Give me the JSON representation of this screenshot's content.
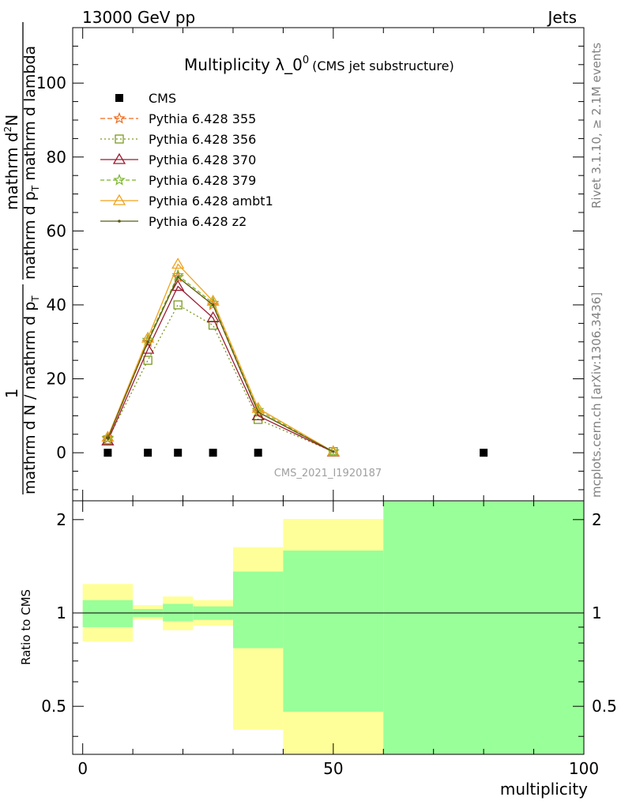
{
  "header": {
    "left": "13000 GeV pp",
    "right": "Jets"
  },
  "side": {
    "rivet": "Rivet 3.1.10, ≥ 2.1M events",
    "mcplots": "mcplots.cern.ch [arXiv:1306.3436]"
  },
  "chart_data": [
    {
      "type": "line",
      "title_main": "Multiplicity λ_0",
      "title_sup": "0",
      "title_small": "(CMS jet substructure)",
      "watermark": "CMS_2021_I1920187",
      "ylabel_num": "mathrm d",
      "ylabel_num_sup": "2",
      "ylabel_num_N": "N",
      "ylabel_den_line": "mathrm d p",
      "ylabel_den_sub": "T",
      "ylabel_den_rest": " mathrm d lambda",
      "ylabel_prefix_1": "1",
      "ylabel_prefix_den": "mathrm d N / mathrm d p",
      "ylabel_prefix_sub": "T",
      "ylim": [
        -13,
        115
      ],
      "xlim": [
        -2,
        100
      ],
      "y_ticks": [
        "0",
        "20",
        "40",
        "60",
        "80",
        "100"
      ],
      "legend_placement": "top-left",
      "data": {
        "name": "CMS",
        "x": [
          5,
          13,
          19,
          26,
          35,
          80
        ],
        "y": [
          0,
          0,
          0,
          0,
          0,
          0
        ]
      },
      "series": [
        {
          "name": "Pythia 6.428 355",
          "color": "#f06a1c",
          "marker": "star",
          "dash": "6,3",
          "x": [
            5,
            13,
            19,
            26,
            35,
            50
          ],
          "y": [
            3.8,
            30.0,
            47.5,
            40.0,
            11.0,
            0.3
          ]
        },
        {
          "name": "Pythia 6.428 356",
          "color": "#7a9a1e",
          "marker": "square",
          "dash": "2,3",
          "x": [
            5,
            13,
            19,
            26,
            35,
            50
          ],
          "y": [
            3.5,
            25.0,
            40.0,
            34.5,
            9.0,
            0.3
          ]
        },
        {
          "name": "Pythia 6.428 370",
          "color": "#9b1b30",
          "marker": "triangle",
          "dash": "",
          "x": [
            5,
            13,
            19,
            26,
            35,
            50
          ],
          "y": [
            3.2,
            28.0,
            45.0,
            36.5,
            10.0,
            0.2
          ]
        },
        {
          "name": "Pythia 6.428 379",
          "color": "#7ab52a",
          "marker": "star",
          "dash": "5,3",
          "x": [
            5,
            13,
            19,
            26,
            35,
            50
          ],
          "y": [
            4.0,
            30.5,
            48.0,
            40.5,
            11.5,
            0.3
          ]
        },
        {
          "name": "Pythia 6.428 ambt1",
          "color": "#f0a21c",
          "marker": "triangle",
          "dash": "",
          "x": [
            5,
            13,
            19,
            26,
            35,
            50
          ],
          "y": [
            4.2,
            31.0,
            51.0,
            41.0,
            12.0,
            0.3
          ]
        },
        {
          "name": "Pythia 6.428 z2",
          "color": "#5a5a10",
          "marker": "dot",
          "dash": "",
          "x": [
            5,
            13,
            19,
            26,
            35,
            50
          ],
          "y": [
            3.9,
            30.0,
            47.5,
            40.0,
            11.0,
            0.3
          ]
        }
      ]
    },
    {
      "type": "area",
      "ylabel": "Ratio to CMS",
      "xlabel": "multiplicity",
      "ylim": [
        0.35,
        2.3
      ],
      "y_scale": "log",
      "xlim": [
        -2,
        100
      ],
      "x_ticks": [
        "0",
        "50",
        "100"
      ],
      "y_ticks": [
        "0.5",
        "1",
        "2"
      ],
      "bands": [
        {
          "xlow": 0,
          "xhigh": 10,
          "yellow": [
            0.81,
            1.24
          ],
          "green": [
            0.9,
            1.1
          ]
        },
        {
          "xlow": 10,
          "xhigh": 16,
          "yellow": [
            0.95,
            1.06
          ],
          "green": [
            0.97,
            1.03
          ]
        },
        {
          "xlow": 16,
          "xhigh": 22,
          "yellow": [
            0.88,
            1.13
          ],
          "green": [
            0.94,
            1.07
          ]
        },
        {
          "xlow": 22,
          "xhigh": 30,
          "yellow": [
            0.91,
            1.1
          ],
          "green": [
            0.95,
            1.05
          ]
        },
        {
          "xlow": 30,
          "xhigh": 40,
          "yellow": [
            0.42,
            1.63
          ],
          "green": [
            0.77,
            1.36
          ]
        },
        {
          "xlow": 40,
          "xhigh": 60,
          "yellow": [
            0.35,
            2.01
          ],
          "green": [
            0.48,
            1.59
          ]
        },
        {
          "xlow": 60,
          "xhigh": 100,
          "yellow": [
            0.35,
            2.3
          ],
          "green": [
            0.35,
            2.3
          ]
        }
      ]
    }
  ]
}
